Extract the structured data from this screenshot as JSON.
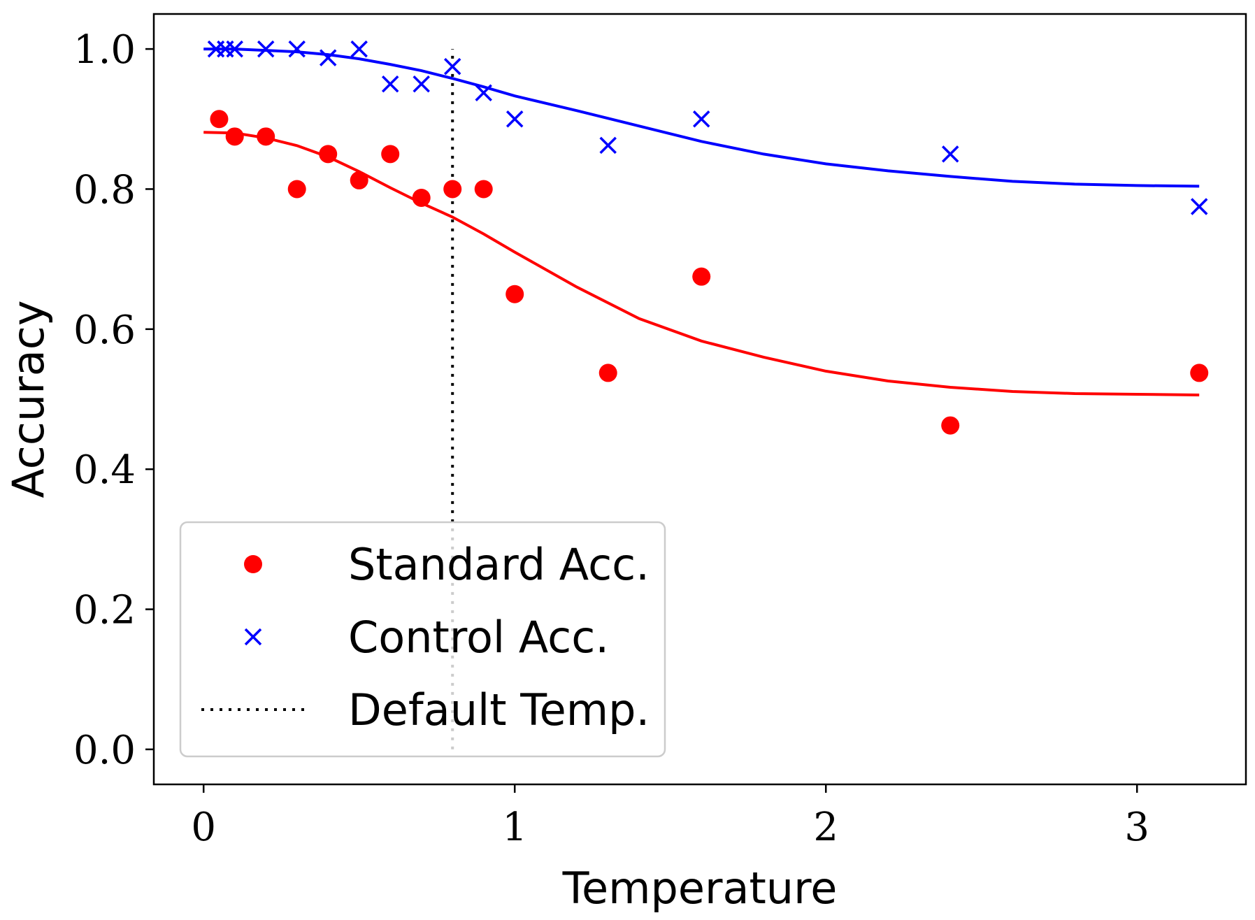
{
  "chart_data": {
    "type": "scatter",
    "xlabel": "Temperature",
    "ylabel": "Accuracy",
    "xlim": [
      -0.16,
      3.35
    ],
    "ylim": [
      -0.05,
      1.05
    ],
    "xticks": [
      0,
      1,
      2,
      3
    ],
    "xtick_labels": [
      "0",
      "1",
      "2",
      "3"
    ],
    "yticks": [
      0.0,
      0.2,
      0.4,
      0.6,
      0.8,
      1.0
    ],
    "ytick_labels": [
      "0.0",
      "0.2",
      "0.4",
      "0.6",
      "0.8",
      "1.0"
    ],
    "grid": false,
    "legend_position": "lower-left",
    "series": [
      {
        "name": "Standard Acc.",
        "marker": "circle",
        "color": "#ff0000",
        "points": [
          {
            "x": 0.05,
            "y": 0.9
          },
          {
            "x": 0.1,
            "y": 0.875
          },
          {
            "x": 0.2,
            "y": 0.875
          },
          {
            "x": 0.3,
            "y": 0.8
          },
          {
            "x": 0.4,
            "y": 0.85
          },
          {
            "x": 0.5,
            "y": 0.8125
          },
          {
            "x": 0.6,
            "y": 0.85
          },
          {
            "x": 0.7,
            "y": 0.7875
          },
          {
            "x": 0.8,
            "y": 0.8
          },
          {
            "x": 0.9,
            "y": 0.8
          },
          {
            "x": 1.0,
            "y": 0.65
          },
          {
            "x": 1.3,
            "y": 0.5375
          },
          {
            "x": 1.6,
            "y": 0.675
          },
          {
            "x": 2.4,
            "y": 0.4625
          },
          {
            "x": 3.2,
            "y": 0.5375
          }
        ],
        "fit_curve": [
          {
            "x": 0.0,
            "y": 0.881
          },
          {
            "x": 0.1,
            "y": 0.88
          },
          {
            "x": 0.2,
            "y": 0.873
          },
          {
            "x": 0.3,
            "y": 0.862
          },
          {
            "x": 0.4,
            "y": 0.846
          },
          {
            "x": 0.5,
            "y": 0.825
          },
          {
            "x": 0.6,
            "y": 0.802
          },
          {
            "x": 0.7,
            "y": 0.78
          },
          {
            "x": 0.8,
            "y": 0.76
          },
          {
            "x": 0.9,
            "y": 0.736
          },
          {
            "x": 1.0,
            "y": 0.71
          },
          {
            "x": 1.2,
            "y": 0.66
          },
          {
            "x": 1.4,
            "y": 0.615
          },
          {
            "x": 1.6,
            "y": 0.583
          },
          {
            "x": 1.8,
            "y": 0.56
          },
          {
            "x": 2.0,
            "y": 0.54
          },
          {
            "x": 2.2,
            "y": 0.526
          },
          {
            "x": 2.4,
            "y": 0.517
          },
          {
            "x": 2.6,
            "y": 0.511
          },
          {
            "x": 2.8,
            "y": 0.508
          },
          {
            "x": 3.0,
            "y": 0.507
          },
          {
            "x": 3.2,
            "y": 0.506
          }
        ]
      },
      {
        "name": "Control Acc.",
        "marker": "x",
        "color": "#0000ff",
        "points": [
          {
            "x": 0.04,
            "y": 1.0
          },
          {
            "x": 0.07,
            "y": 1.0
          },
          {
            "x": 0.1,
            "y": 1.0
          },
          {
            "x": 0.2,
            "y": 1.0
          },
          {
            "x": 0.3,
            "y": 1.0
          },
          {
            "x": 0.4,
            "y": 0.9875
          },
          {
            "x": 0.5,
            "y": 1.0
          },
          {
            "x": 0.6,
            "y": 0.95
          },
          {
            "x": 0.7,
            "y": 0.95
          },
          {
            "x": 0.8,
            "y": 0.975
          },
          {
            "x": 0.9,
            "y": 0.9375
          },
          {
            "x": 1.0,
            "y": 0.9
          },
          {
            "x": 1.3,
            "y": 0.8625
          },
          {
            "x": 1.6,
            "y": 0.9
          },
          {
            "x": 2.4,
            "y": 0.85
          },
          {
            "x": 3.2,
            "y": 0.775
          }
        ],
        "fit_curve": [
          {
            "x": 0.0,
            "y": 1.0
          },
          {
            "x": 0.1,
            "y": 1.0
          },
          {
            "x": 0.2,
            "y": 0.998
          },
          {
            "x": 0.3,
            "y": 0.996
          },
          {
            "x": 0.4,
            "y": 0.992
          },
          {
            "x": 0.5,
            "y": 0.986
          },
          {
            "x": 0.6,
            "y": 0.978
          },
          {
            "x": 0.7,
            "y": 0.969
          },
          {
            "x": 0.8,
            "y": 0.958
          },
          {
            "x": 0.9,
            "y": 0.946
          },
          {
            "x": 1.0,
            "y": 0.933
          },
          {
            "x": 1.2,
            "y": 0.912
          },
          {
            "x": 1.4,
            "y": 0.89
          },
          {
            "x": 1.6,
            "y": 0.868
          },
          {
            "x": 1.8,
            "y": 0.85
          },
          {
            "x": 2.0,
            "y": 0.836
          },
          {
            "x": 2.2,
            "y": 0.826
          },
          {
            "x": 2.4,
            "y": 0.818
          },
          {
            "x": 2.6,
            "y": 0.811
          },
          {
            "x": 2.8,
            "y": 0.807
          },
          {
            "x": 3.0,
            "y": 0.805
          },
          {
            "x": 3.2,
            "y": 0.804
          }
        ]
      }
    ],
    "reference_lines": [
      {
        "name": "Default Temp.",
        "orientation": "vertical",
        "x": 0.8,
        "y_range": [
          0.0,
          1.0
        ],
        "style": "dotted",
        "color": "#000000"
      }
    ]
  }
}
